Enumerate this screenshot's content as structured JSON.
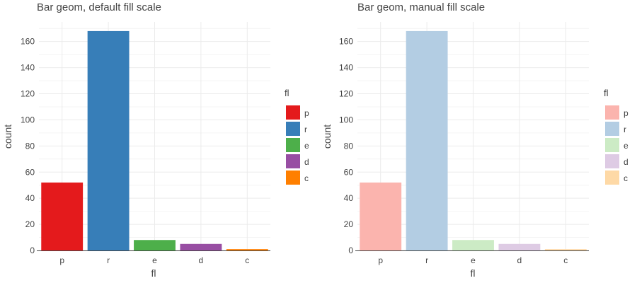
{
  "chart_data": [
    {
      "type": "bar",
      "title": "Bar geom, default fill scale",
      "xlabel": "fl",
      "ylabel": "count",
      "categories": [
        "p",
        "r",
        "e",
        "d",
        "c"
      ],
      "values": [
        52,
        168,
        8,
        5,
        1
      ],
      "colors": [
        "#E41A1C",
        "#377EB8",
        "#4DAF4A",
        "#984EA3",
        "#FF7F00"
      ],
      "ylim": [
        0,
        175
      ],
      "yticks": [
        0,
        20,
        40,
        60,
        80,
        100,
        120,
        140,
        160
      ],
      "grid": true,
      "legend": {
        "title": "fl",
        "entries": [
          "p",
          "r",
          "e",
          "d",
          "c"
        ],
        "placement": "right"
      }
    },
    {
      "type": "bar",
      "title": "Bar geom, manual fill scale",
      "xlabel": "fl",
      "ylabel": "count",
      "categories": [
        "p",
        "r",
        "e",
        "d",
        "c"
      ],
      "values": [
        52,
        168,
        8,
        5,
        1
      ],
      "colors": [
        "#FBB4AE",
        "#B3CDE3",
        "#CCEBC5",
        "#DECBE4",
        "#FED9A6"
      ],
      "ylim": [
        0,
        175
      ],
      "yticks": [
        0,
        20,
        40,
        60,
        80,
        100,
        120,
        140,
        160
      ],
      "grid": true,
      "legend": {
        "title": "fl",
        "entries": [
          "p",
          "r",
          "e",
          "d",
          "c"
        ],
        "placement": "right"
      }
    }
  ]
}
